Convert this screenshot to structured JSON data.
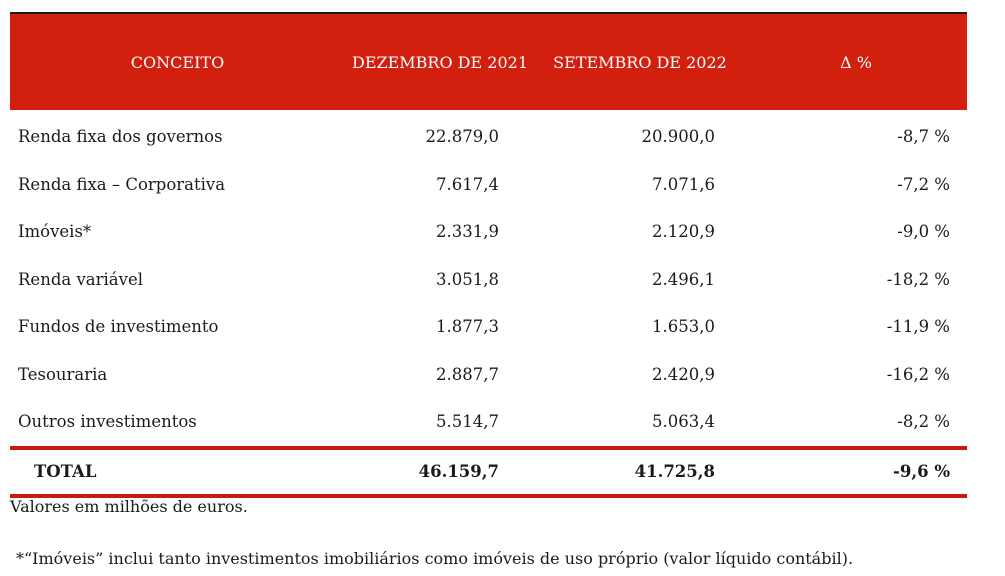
{
  "table": {
    "headers": {
      "concept": "CONCEITO",
      "dec2021": "DEZEMBRO DE 2021",
      "sep2022": "SETEMBRO DE 2022",
      "delta": "Δ %"
    },
    "rows": [
      {
        "concept": "Renda fixa dos governos",
        "dec2021": "22.879,0",
        "sep2022": "20.900,0",
        "delta": "-8,7 %"
      },
      {
        "concept": "Renda fixa – Corporativa",
        "dec2021": "7.617,4",
        "sep2022": "7.071,6",
        "delta": "-7,2 %"
      },
      {
        "concept": "Imóveis*",
        "dec2021": "2.331,9",
        "sep2022": "2.120,9",
        "delta": "-9,0 %"
      },
      {
        "concept": "Renda variável",
        "dec2021": "3.051,8",
        "sep2022": "2.496,1",
        "delta": "-18,2 %"
      },
      {
        "concept": "Fundos de investimento",
        "dec2021": "1.877,3",
        "sep2022": "1.653,0",
        "delta": "-11,9 %"
      },
      {
        "concept": "Tesouraria",
        "dec2021": "2.887,7",
        "sep2022": "2.420,9",
        "delta": "-16,2 %"
      },
      {
        "concept": "Outros investimentos",
        "dec2021": "5.514,7",
        "sep2022": "5.063,4",
        "delta": "-8,2 %"
      }
    ],
    "total": {
      "concept": "TOTAL",
      "dec2021": "46.159,7",
      "sep2022": "41.725,8",
      "delta": "-9,6 %"
    }
  },
  "notes": {
    "units": "Valores em milhões de euros.",
    "footnote": "*“Imóveis” inclui tanto investimentos imobiliários como imóveis de uso próprio (valor líquido contábil)."
  },
  "colors": {
    "header_bg": "#d3200e",
    "rule": "#c51d0d"
  }
}
